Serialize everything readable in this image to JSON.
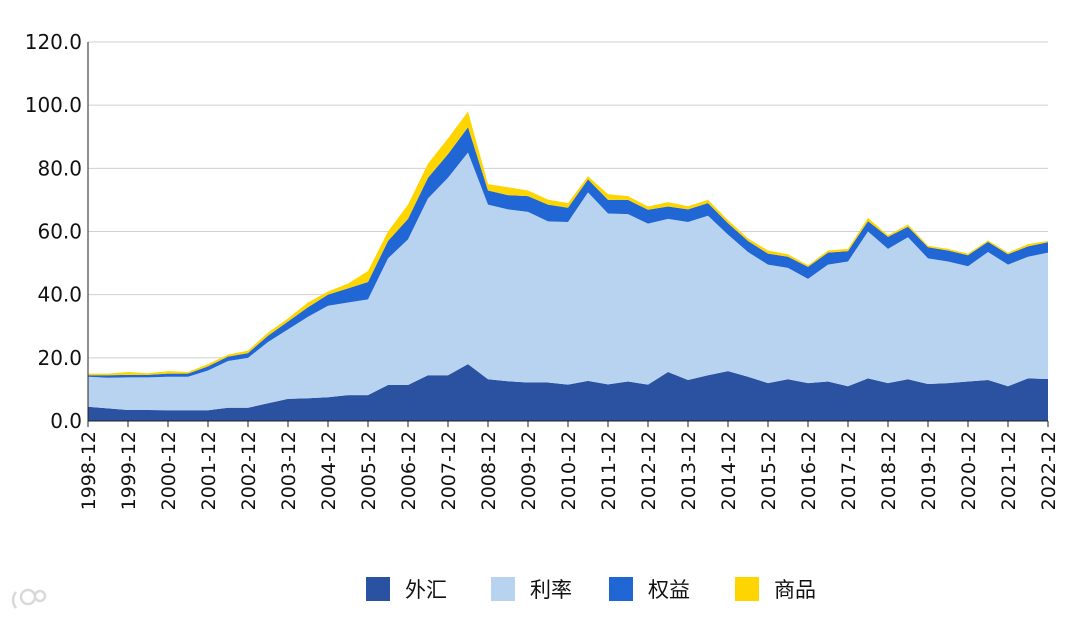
{
  "chart_data": {
    "type": "area",
    "stacked": true,
    "title": "",
    "xlabel": "",
    "ylabel": "",
    "ylim": [
      0,
      120
    ],
    "yticks": [
      "0.0",
      "20.0",
      "40.0",
      "60.0",
      "80.0",
      "100.0",
      "120.0"
    ],
    "grid": true,
    "legend_position": "bottom",
    "xtick_labels": [
      "1998-12",
      "1999-12",
      "2000-12",
      "2001-12",
      "2002-12",
      "2003-12",
      "2004-12",
      "2005-12",
      "2006-12",
      "2007-12",
      "2008-12",
      "2009-12",
      "2010-12",
      "2011-12",
      "2012-12",
      "2013-12",
      "2014-12",
      "2015-12",
      "2016-12",
      "2017-12",
      "2018-12",
      "2019-12",
      "2020-12",
      "2021-12",
      "2022-12"
    ],
    "x": [
      "1998-12",
      "1999-06",
      "1999-12",
      "2000-06",
      "2000-12",
      "2001-06",
      "2001-12",
      "2002-06",
      "2002-12",
      "2003-06",
      "2003-12",
      "2004-06",
      "2004-12",
      "2005-06",
      "2005-12",
      "2006-06",
      "2006-12",
      "2007-06",
      "2007-12",
      "2008-06",
      "2008-12",
      "2009-06",
      "2009-12",
      "2010-06",
      "2010-12",
      "2011-06",
      "2011-12",
      "2012-06",
      "2012-12",
      "2013-06",
      "2013-12",
      "2014-06",
      "2014-12",
      "2015-06",
      "2015-12",
      "2016-06",
      "2016-12",
      "2017-06",
      "2017-12",
      "2018-06",
      "2018-12",
      "2019-06",
      "2019-12",
      "2020-06",
      "2020-12",
      "2021-06",
      "2021-12",
      "2022-06",
      "2022-12"
    ],
    "series": [
      {
        "name": "外汇",
        "color": "#2a52a0",
        "values": [
          4.5,
          4,
          3.5,
          3.5,
          3.4,
          3.4,
          3.4,
          4.2,
          4.2,
          5.6,
          7,
          7.2,
          7.5,
          8.2,
          8.2,
          11.4,
          11.4,
          14.5,
          14.5,
          18,
          13.2,
          12.6,
          12.2,
          12.2,
          11.5,
          12.7,
          11.6,
          12.5,
          11.5,
          15.5,
          13,
          14.5,
          15.8,
          14,
          12,
          13.2,
          12,
          12.5,
          11,
          13.5,
          12,
          13.2,
          11.7,
          12,
          12.5,
          13,
          11,
          13.5,
          13.3
        ]
      },
      {
        "name": "利率",
        "color": "#b8d3f0",
        "values": [
          9.5,
          9.7,
          10.3,
          10.3,
          10.6,
          10.6,
          12.6,
          14.8,
          15.8,
          19.4,
          22,
          25.8,
          29,
          29.3,
          30.3,
          40.1,
          46.1,
          56,
          62.5,
          67,
          55.3,
          54.4,
          54,
          51,
          51.5,
          59.7,
          54.1,
          53,
          51,
          48.5,
          50,
          50.5,
          43.2,
          39.5,
          37.5,
          35.3,
          33,
          37,
          39.5,
          46.5,
          42.5,
          45,
          39.8,
          38.5,
          36.5,
          40.5,
          38.5,
          38.5,
          40
        ]
      },
      {
        "name": "权益",
        "color": "#2066d4",
        "values": [
          0.5,
          0.8,
          0.8,
          0.8,
          1.0,
          1.0,
          1.3,
          1.4,
          1.5,
          2,
          2.5,
          3,
          3.5,
          4.5,
          5.5,
          5.5,
          6.5,
          6.5,
          7.5,
          8,
          4.5,
          4.5,
          5,
          5.3,
          4.5,
          4.1,
          4.3,
          4.5,
          4.4,
          3.9,
          4,
          4,
          3.6,
          3.5,
          3.5,
          3.5,
          3.8,
          3.8,
          3.3,
          3.3,
          3.8,
          3.3,
          3.5,
          3.5,
          3.5,
          3.2,
          3.3,
          3.3,
          3.3
        ]
      },
      {
        "name": "商品",
        "color": "#ffd500",
        "values": [
          0.5,
          0.5,
          0.9,
          0.5,
          0.8,
          0.5,
          0.7,
          0.6,
          0.8,
          1,
          1,
          1.5,
          1,
          1.5,
          3.5,
          3,
          4.5,
          4.5,
          5,
          5,
          2,
          2.5,
          1.8,
          1.6,
          1.5,
          1.0,
          1.8,
          1.2,
          1.0,
          1.4,
          1.0,
          1.0,
          1.0,
          0.8,
          1.0,
          0.8,
          0.5,
          0.7,
          0.7,
          1.0,
          0.5,
          0.7,
          0.5,
          0.5,
          0.5,
          0.5,
          0.5,
          0.7,
          0.4
        ]
      }
    ]
  }
}
